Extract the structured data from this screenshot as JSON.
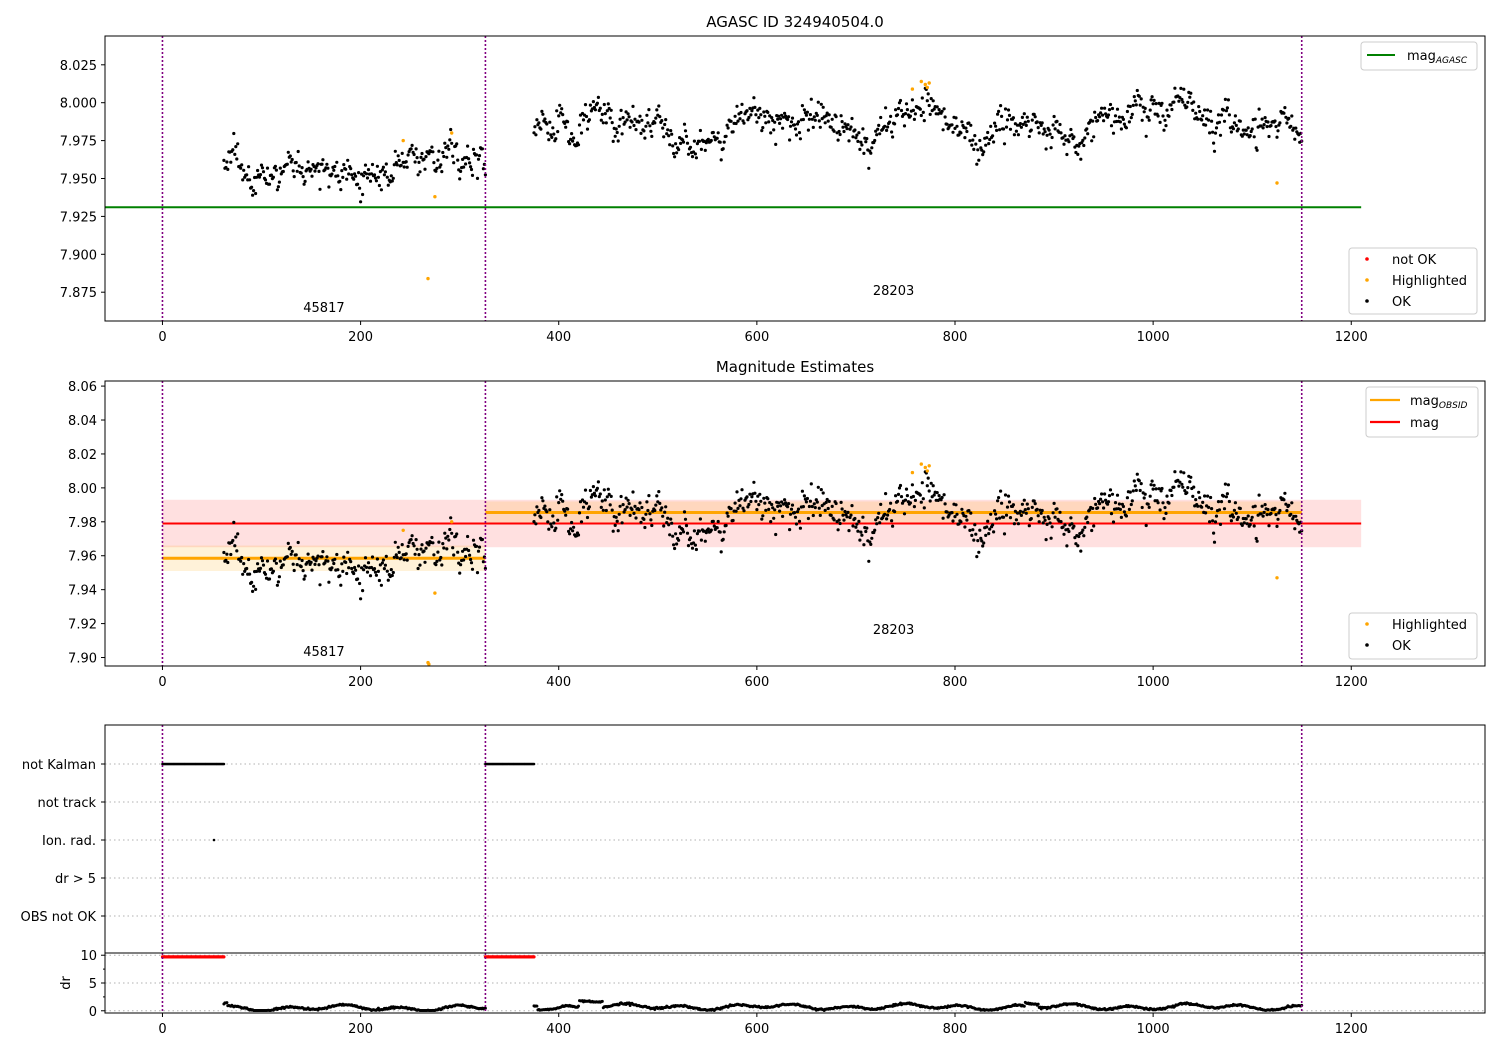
{
  "figure": {
    "title": "AGASC ID 324940504.0"
  },
  "chart_data": [
    {
      "id": "panel1",
      "type": "scatter",
      "title": "AGASC ID 324940504.0",
      "xlim": [
        -58,
        1335
      ],
      "ylim": [
        7.856,
        8.044
      ],
      "xticks": [
        0,
        200,
        400,
        600,
        800,
        1000,
        1200
      ],
      "yticks": [
        7.875,
        7.9,
        7.925,
        7.95,
        7.975,
        8.0,
        8.025
      ],
      "yticklabels": [
        "7.875",
        "7.900",
        "7.925",
        "7.950",
        "7.975",
        "8.000",
        "8.025"
      ],
      "obs_boundaries": [
        0,
        326,
        1150
      ],
      "obs_labels": [
        {
          "text": "45817",
          "x": 163,
          "y": 7.862
        },
        {
          "text": "28203",
          "x": 738,
          "y": 7.873
        }
      ],
      "hlines": [
        {
          "name": "mag_AGASC",
          "y": 7.931,
          "x0": -58,
          "x1": 1210,
          "color": "#008000"
        }
      ],
      "ok_segments": [
        {
          "x0": 62,
          "x1": 326,
          "mean": 7.959,
          "sd": 0.0068
        },
        {
          "x0": 375,
          "x1": 1150,
          "mean": 7.986,
          "sd": 0.0075
        }
      ],
      "highlighted_points": [
        [
          243,
          7.975
        ],
        [
          268,
          7.884
        ],
        [
          275,
          7.938
        ],
        [
          292,
          7.98
        ],
        [
          757,
          8.009
        ],
        [
          766,
          8.014
        ],
        [
          770,
          8.012
        ],
        [
          772,
          8.01
        ],
        [
          774,
          8.013
        ],
        [
          1125,
          7.947
        ]
      ],
      "legend_lines": [
        {
          "label": "mag",
          "sub": "AGASC",
          "color": "#008000"
        }
      ],
      "legend_markers": [
        {
          "label": "not OK",
          "color": "#ff0000"
        },
        {
          "label": "Highlighted",
          "color": "#ffa500"
        },
        {
          "label": "OK",
          "color": "#000000"
        }
      ]
    },
    {
      "id": "panel2",
      "type": "scatter",
      "title": "Magnitude Estimates",
      "xlim": [
        -58,
        1335
      ],
      "ylim": [
        7.895,
        8.063
      ],
      "xticks": [
        0,
        200,
        400,
        600,
        800,
        1000,
        1200
      ],
      "yticks": [
        7.9,
        7.92,
        7.94,
        7.96,
        7.98,
        8.0,
        8.02,
        8.04,
        8.06
      ],
      "yticklabels": [
        "7.90",
        "7.92",
        "7.94",
        "7.96",
        "7.98",
        "8.00",
        "8.02",
        "8.04",
        "8.06"
      ],
      "obs_boundaries": [
        0,
        326,
        1150
      ],
      "obs_labels": [
        {
          "text": "45817",
          "x": 163,
          "y": 7.901
        },
        {
          "text": "28203",
          "x": 738,
          "y": 7.914
        }
      ],
      "mag_band": {
        "y": 7.979,
        "lo": 7.965,
        "hi": 7.993,
        "x0": 0,
        "x1": 1210,
        "color": "#ff0000"
      },
      "obsid_mags": [
        {
          "x0": 0,
          "x1": 326,
          "y": 7.9585,
          "lo": 7.951,
          "hi": 7.966
        },
        {
          "x0": 326,
          "x1": 1150,
          "y": 7.9855,
          "lo": 7.979,
          "hi": 7.992
        }
      ],
      "ok_segments": [
        {
          "x0": 62,
          "x1": 326,
          "mean": 7.959,
          "sd": 0.0068
        },
        {
          "x0": 375,
          "x1": 1150,
          "mean": 7.986,
          "sd": 0.0075
        }
      ],
      "highlighted_points": [
        [
          243,
          7.975
        ],
        [
          268,
          7.897
        ],
        [
          269,
          7.896
        ],
        [
          275,
          7.938
        ],
        [
          292,
          7.98
        ],
        [
          757,
          8.009
        ],
        [
          766,
          8.014
        ],
        [
          770,
          8.012
        ],
        [
          772,
          8.01
        ],
        [
          774,
          8.013
        ],
        [
          1125,
          7.947
        ]
      ],
      "legend_lines": [
        {
          "label": "mag",
          "sub": "OBSID",
          "color": "#ffa500"
        },
        {
          "label": "mag",
          "sub": "",
          "color": "#ff0000"
        }
      ],
      "legend_markers": [
        {
          "label": "Highlighted",
          "color": "#ffa500"
        },
        {
          "label": "OK",
          "color": "#000000"
        }
      ]
    },
    {
      "id": "panel3",
      "type": "scatter",
      "xlim": [
        -58,
        1335
      ],
      "categories": [
        "not Kalman",
        "not track",
        "Ion. rad.",
        "dr > 5",
        "OBS not OK"
      ],
      "obs_boundaries": [
        0,
        326,
        1150
      ],
      "flag_segments": [
        {
          "category": "not Kalman",
          "x0": 0,
          "x1": 62
        },
        {
          "category": "not Kalman",
          "x0": 326,
          "x1": 375
        }
      ],
      "flag_points": [
        {
          "category": "Ion. rad.",
          "x": 52
        }
      ]
    },
    {
      "id": "panel4",
      "type": "scatter",
      "ylabel": "dr",
      "xlim": [
        -58,
        1335
      ],
      "ylim": [
        -0.4,
        10.4
      ],
      "xticks": [
        0,
        200,
        400,
        600,
        800,
        1000,
        1200
      ],
      "yticks": [
        0,
        5,
        10
      ],
      "yticklabels": [
        "0",
        "5",
        "10"
      ],
      "obs_boundaries": [
        0,
        326,
        1150
      ],
      "capped_segments": [
        {
          "x0": 0,
          "x1": 62,
          "y": 9.7
        },
        {
          "x0": 326,
          "x1": 375,
          "y": 9.7
        }
      ],
      "dr_segments": [
        {
          "x0": 62,
          "x1": 326,
          "base": 0.5
        },
        {
          "x0": 375,
          "x1": 1150,
          "base": 0.7
        }
      ]
    }
  ]
}
